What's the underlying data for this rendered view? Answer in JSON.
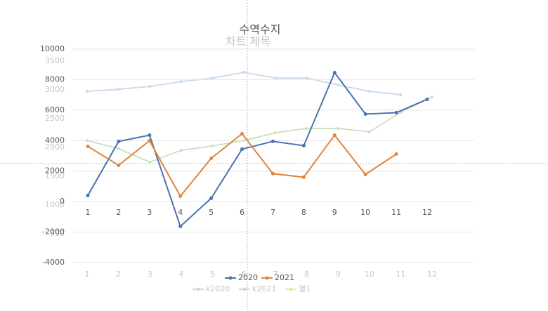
{
  "chart_data": [
    {
      "type": "line",
      "title": "차트 제목",
      "categories": [
        "1",
        "2",
        "3",
        "4",
        "5",
        "6",
        "7",
        "8",
        "9",
        "10",
        "11",
        "12"
      ],
      "series": [
        {
          "name": "k2020",
          "color": "#c9e0bd",
          "values": [
            2120,
            1980,
            1745,
            1950,
            2025,
            2120,
            2255,
            2330,
            2330,
            2270,
            2610,
            2880
          ]
        },
        {
          "name": "k2021",
          "color": "#c6d9ee",
          "values": [
            2975,
            3010,
            3060,
            3145,
            3205,
            3305,
            3205,
            3205,
            3085,
            2975,
            2915,
            null
          ]
        },
        {
          "name": "열1",
          "color": "#f5e3a6",
          "values": [
            null,
            null,
            null,
            null,
            null,
            null,
            null,
            null,
            null,
            null,
            null,
            null
          ]
        }
      ],
      "ylim": [
        0,
        3500
      ],
      "yticks": [
        500,
        1000,
        1500,
        2000,
        2500,
        3000,
        3500
      ],
      "grid": false
    },
    {
      "type": "line",
      "title": "수역수지",
      "categories": [
        "1",
        "2",
        "3",
        "4",
        "5",
        "6",
        "7",
        "8",
        "9",
        "10",
        "11",
        "12"
      ],
      "series": [
        {
          "name": "2020",
          "color": "#4a72b0",
          "values": [
            400,
            3950,
            4360,
            -1630,
            220,
            3440,
            3950,
            3670,
            8460,
            5740,
            5830,
            6710
          ]
        },
        {
          "name": "2021",
          "color": "#e0843c",
          "values": [
            3620,
            2380,
            3990,
            350,
            2840,
            4450,
            1830,
            1600,
            4360,
            1780,
            3120,
            null
          ]
        }
      ],
      "ylim": [
        -4000,
        10000
      ],
      "yticks": [
        -4000,
        -2000,
        0,
        2000,
        4000,
        6000,
        8000,
        10000
      ],
      "grid": true
    }
  ]
}
